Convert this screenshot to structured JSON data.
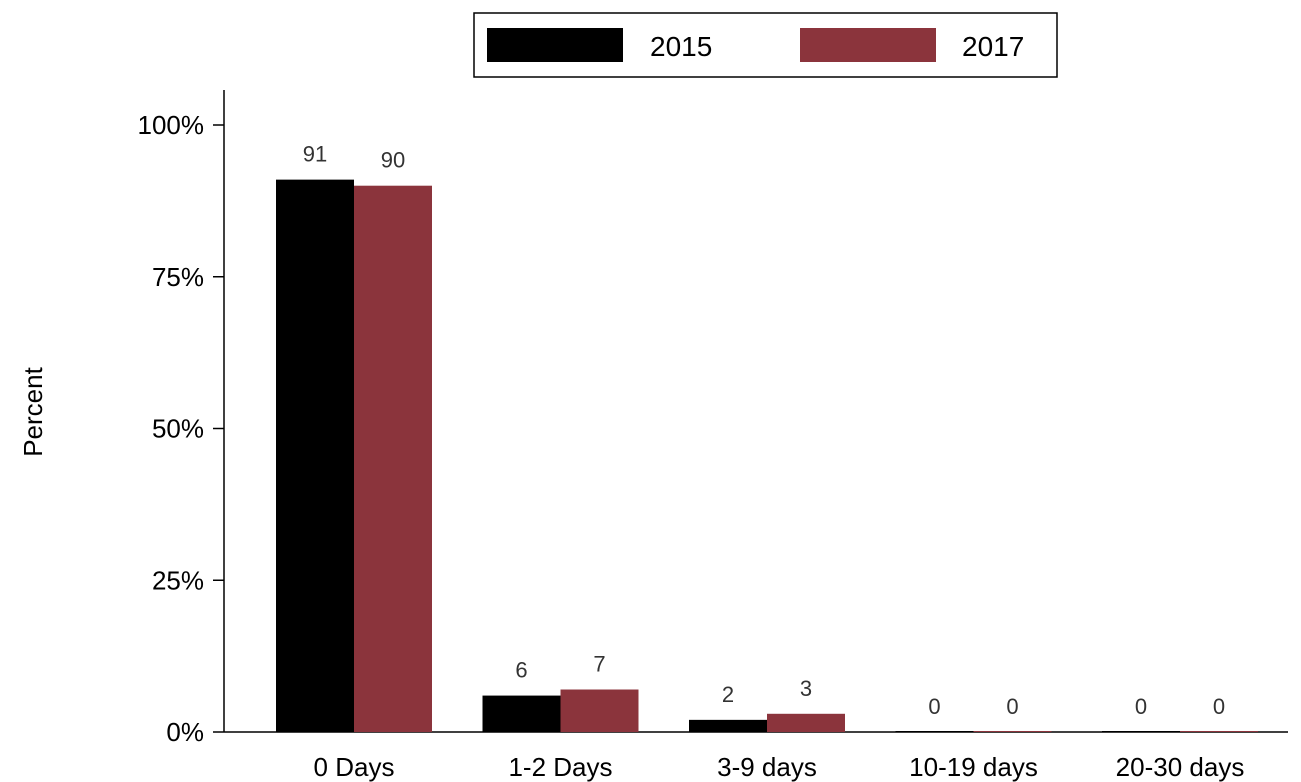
{
  "chart_data": {
    "type": "bar",
    "title": "",
    "xlabel": "",
    "ylabel": "Percent",
    "ylim": [
      0,
      100
    ],
    "y_ticks": [
      0,
      25,
      50,
      75,
      100
    ],
    "y_tick_labels": [
      "0%",
      "25%",
      "50%",
      "75%",
      "100%"
    ],
    "categories": [
      "0 Days",
      "1-2 Days",
      "3-9 days",
      "10-19 days",
      "20-30 days"
    ],
    "series": [
      {
        "name": "2015",
        "color": "#000000",
        "values": [
          91,
          6,
          2,
          0,
          0
        ],
        "labels": [
          "91",
          "6",
          "2",
          "0",
          "0"
        ]
      },
      {
        "name": "2017",
        "color": "#8b343c",
        "values": [
          90,
          7,
          3,
          0,
          0
        ],
        "labels": [
          "90",
          "7",
          "3",
          "0",
          "0"
        ]
      }
    ],
    "grid": false,
    "legend_position": "top"
  }
}
